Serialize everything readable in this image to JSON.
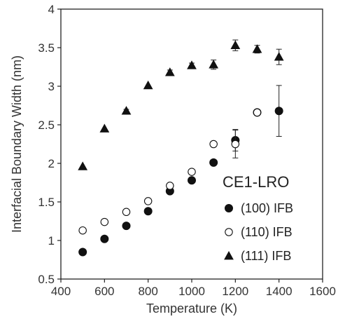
{
  "chart_data": {
    "type": "scatter",
    "title": "",
    "xlabel": "Temperature (K)",
    "ylabel": "Interfacial Boundary Width (nm)",
    "xlim": [
      400,
      1600
    ],
    "ylim": [
      0.5,
      4
    ],
    "xticks": [
      400,
      600,
      800,
      1000,
      1200,
      1400,
      1600
    ],
    "yticks": [
      0.5,
      1,
      1.5,
      2,
      2.5,
      3,
      3.5,
      4
    ],
    "ytick_labels": [
      "0.5",
      "1",
      "1.5",
      "2",
      "2.5",
      "3",
      "3.5",
      "4"
    ],
    "grid": false,
    "legend": {
      "title": "CE1-LRO",
      "placement": "bottom-right"
    },
    "series": [
      {
        "name": "(100) IFB",
        "marker": "filled-circle",
        "color": "#111111",
        "x": [
          500,
          600,
          700,
          800,
          900,
          1000,
          1100,
          1200,
          1300,
          1400
        ],
        "y": [
          0.85,
          1.02,
          1.19,
          1.38,
          1.64,
          1.78,
          2.01,
          2.3,
          2.66,
          2.68
        ],
        "err": [
          0,
          0,
          0,
          0,
          0,
          0,
          0,
          0.14,
          0.03,
          0.33
        ]
      },
      {
        "name": "(110) IFB",
        "marker": "open-circle",
        "color": "#111111",
        "x": [
          500,
          600,
          700,
          800,
          900,
          1000,
          1100,
          1200,
          1300
        ],
        "y": [
          1.13,
          1.24,
          1.37,
          1.51,
          1.71,
          1.89,
          2.25,
          2.25,
          2.66
        ],
        "err": [
          0.02,
          0.02,
          0.02,
          0.03,
          0.03,
          0.03,
          0.02,
          0.18,
          0.03
        ]
      },
      {
        "name": "(111) IFB",
        "marker": "filled-triangle",
        "color": "#111111",
        "x": [
          500,
          600,
          700,
          800,
          900,
          1000,
          1100,
          1200,
          1300,
          1400
        ],
        "y": [
          1.96,
          2.45,
          2.68,
          3.01,
          3.18,
          3.27,
          3.28,
          3.53,
          3.48,
          3.38
        ],
        "err": [
          0,
          0,
          0.02,
          0,
          0.03,
          0.03,
          0.06,
          0.07,
          0.05,
          0.1
        ]
      }
    ]
  }
}
